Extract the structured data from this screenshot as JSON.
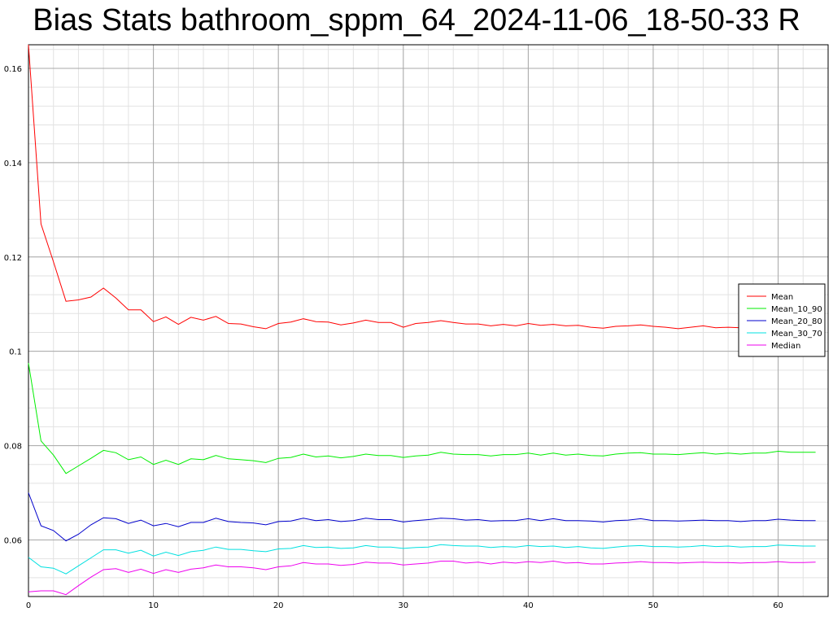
{
  "chart_data": {
    "type": "line",
    "title": "Bias Stats bathroom_sppm_64_2024-11-06_18-50-33 R",
    "xlabel": "",
    "ylabel": "",
    "xlim": [
      0,
      64
    ],
    "ylim": [
      0.048,
      0.165
    ],
    "x_ticks": [
      0,
      10,
      20,
      30,
      40,
      50,
      60
    ],
    "y_ticks": [
      0.06,
      0.08,
      0.1,
      0.12,
      0.14,
      0.16
    ],
    "y_tick_labels": [
      "0.06",
      "0.08",
      "0.1",
      "0.12",
      "0.14",
      "0.16"
    ],
    "grid": true,
    "legend_position": "right",
    "x": [
      0,
      1,
      2,
      3,
      4,
      5,
      6,
      7,
      8,
      9,
      10,
      11,
      12,
      13,
      14,
      15,
      16,
      17,
      18,
      19,
      20,
      21,
      22,
      23,
      24,
      25,
      26,
      27,
      28,
      29,
      30,
      31,
      32,
      33,
      34,
      35,
      36,
      37,
      38,
      39,
      40,
      41,
      42,
      43,
      44,
      45,
      46,
      47,
      48,
      49,
      50,
      51,
      52,
      53,
      54,
      55,
      56,
      57,
      58,
      59,
      60,
      61,
      62,
      63
    ],
    "series": [
      {
        "name": "Mean",
        "color": "#ff0000",
        "values": [
          0.165,
          0.127,
          0.119,
          0.1106,
          0.1109,
          0.1115,
          0.1134,
          0.1113,
          0.1088,
          0.1088,
          0.1063,
          0.1073,
          0.1057,
          0.1072,
          0.1066,
          0.1074,
          0.1059,
          0.1058,
          0.1052,
          0.1048,
          0.1059,
          0.1062,
          0.1069,
          0.1063,
          0.1062,
          0.1056,
          0.106,
          0.1066,
          0.1061,
          0.1061,
          0.1051,
          0.1059,
          0.1061,
          0.1065,
          0.1061,
          0.1058,
          0.1058,
          0.1054,
          0.1057,
          0.1054,
          0.1059,
          0.1055,
          0.1057,
          0.1054,
          0.1055,
          0.1051,
          0.1049,
          0.1053,
          0.1054,
          0.1056,
          0.1053,
          0.1051,
          0.1048,
          0.1051,
          0.1054,
          0.105,
          0.1051,
          0.105,
          0.1051,
          0.1052,
          0.105,
          0.1051,
          0.1052,
          0.1051
        ]
      },
      {
        "name": "Mean_10_90",
        "color": "#00ee00",
        "values": [
          0.0975,
          0.081,
          0.078,
          0.0741,
          0.0757,
          0.0773,
          0.079,
          0.0785,
          0.077,
          0.0776,
          0.076,
          0.0769,
          0.076,
          0.0772,
          0.077,
          0.0779,
          0.0772,
          0.077,
          0.0768,
          0.0764,
          0.0773,
          0.0775,
          0.0782,
          0.0776,
          0.0778,
          0.0774,
          0.0777,
          0.0782,
          0.0779,
          0.0779,
          0.0775,
          0.0778,
          0.078,
          0.0786,
          0.0782,
          0.0781,
          0.0781,
          0.0778,
          0.0781,
          0.0781,
          0.0784,
          0.078,
          0.0784,
          0.078,
          0.0782,
          0.0779,
          0.0778,
          0.0782,
          0.0784,
          0.0785,
          0.0782,
          0.0782,
          0.0781,
          0.0783,
          0.0785,
          0.0782,
          0.0784,
          0.0782,
          0.0784,
          0.0784,
          0.0788,
          0.0786,
          0.0786,
          0.0786
        ]
      },
      {
        "name": "Mean_20_80",
        "color": "#0000cc",
        "values": [
          0.07,
          0.063,
          0.062,
          0.0598,
          0.0612,
          0.0632,
          0.0647,
          0.0645,
          0.0635,
          0.0642,
          0.063,
          0.0635,
          0.0628,
          0.0637,
          0.0637,
          0.0646,
          0.0639,
          0.0637,
          0.0636,
          0.0632,
          0.0639,
          0.064,
          0.0646,
          0.0641,
          0.0643,
          0.0639,
          0.0641,
          0.0646,
          0.0643,
          0.0643,
          0.0638,
          0.0641,
          0.0643,
          0.0646,
          0.0645,
          0.0642,
          0.0643,
          0.064,
          0.0641,
          0.0641,
          0.0645,
          0.0641,
          0.0645,
          0.0641,
          0.0641,
          0.064,
          0.0638,
          0.0641,
          0.0642,
          0.0645,
          0.0641,
          0.0641,
          0.064,
          0.0641,
          0.0642,
          0.0641,
          0.0641,
          0.0639,
          0.0641,
          0.0641,
          0.0644,
          0.0642,
          0.0641,
          0.0641
        ]
      },
      {
        "name": "Mean_30_70",
        "color": "#00e0e0",
        "values": [
          0.0563,
          0.0543,
          0.054,
          0.0528,
          0.0545,
          0.0562,
          0.0579,
          0.0579,
          0.0572,
          0.0578,
          0.0566,
          0.0574,
          0.0567,
          0.0575,
          0.0578,
          0.0585,
          0.058,
          0.058,
          0.0577,
          0.0575,
          0.0581,
          0.0582,
          0.0588,
          0.0584,
          0.0585,
          0.0582,
          0.0583,
          0.0588,
          0.0585,
          0.0585,
          0.0582,
          0.0584,
          0.0585,
          0.059,
          0.0588,
          0.0587,
          0.0587,
          0.0584,
          0.0586,
          0.0585,
          0.0588,
          0.0586,
          0.0587,
          0.0584,
          0.0586,
          0.0583,
          0.0582,
          0.0585,
          0.0587,
          0.0588,
          0.0586,
          0.0586,
          0.0585,
          0.0586,
          0.0588,
          0.0586,
          0.0587,
          0.0585,
          0.0586,
          0.0586,
          0.0589,
          0.0588,
          0.0587,
          0.0587
        ]
      },
      {
        "name": "Median",
        "color": "#ee00ee",
        "values": [
          0.049,
          0.0492,
          0.0492,
          0.0484,
          0.0503,
          0.0521,
          0.0537,
          0.0539,
          0.0531,
          0.0538,
          0.0529,
          0.0537,
          0.0531,
          0.0538,
          0.0541,
          0.0547,
          0.0543,
          0.0543,
          0.0541,
          0.0537,
          0.0543,
          0.0545,
          0.0552,
          0.0549,
          0.0549,
          0.0546,
          0.0548,
          0.0553,
          0.0551,
          0.0551,
          0.0547,
          0.0549,
          0.0551,
          0.0555,
          0.0555,
          0.0551,
          0.0553,
          0.0549,
          0.0553,
          0.0551,
          0.0554,
          0.0552,
          0.0555,
          0.0551,
          0.0552,
          0.0549,
          0.0549,
          0.0551,
          0.0552,
          0.0554,
          0.0552,
          0.0552,
          0.0551,
          0.0552,
          0.0553,
          0.0552,
          0.0552,
          0.0551,
          0.0552,
          0.0552,
          0.0554,
          0.0552,
          0.0552,
          0.0553
        ]
      }
    ]
  }
}
